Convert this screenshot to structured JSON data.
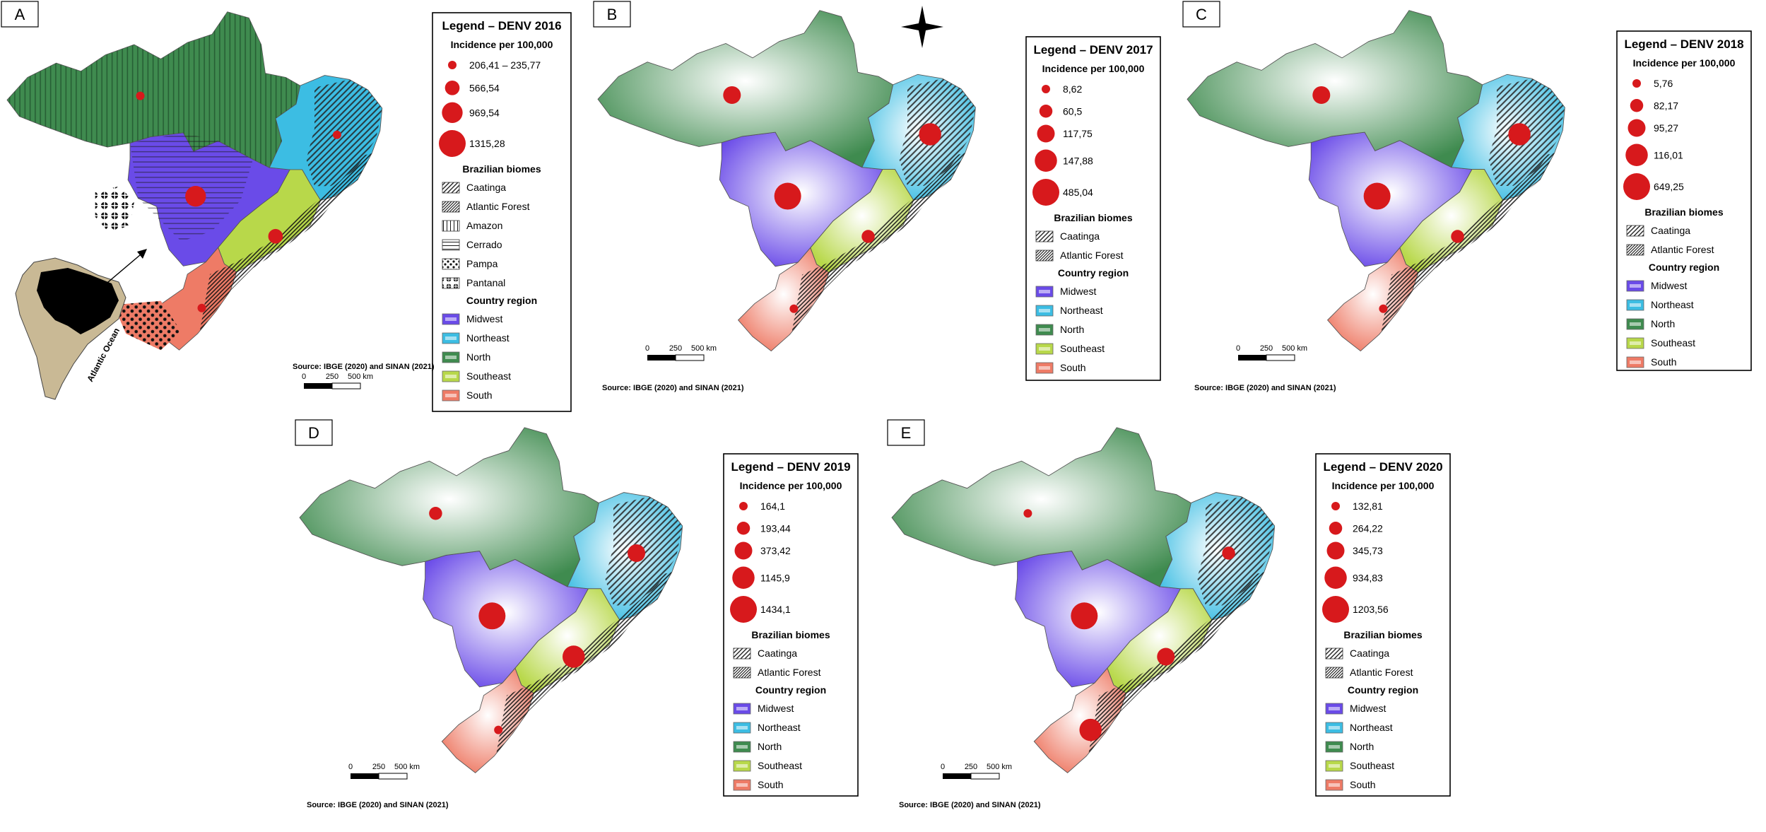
{
  "source_note": "Source: IBGE (2020) and SINAN (2021)",
  "scale": {
    "ticks": [
      "0",
      "250",
      "500 km"
    ]
  },
  "inset": {
    "ocean_label": "Atlantic Ocean"
  },
  "section_titles": {
    "incidence": "Incidence per 100,000",
    "biomes": "Brazilian biomes",
    "regions": "Country region"
  },
  "region_colors": {
    "Midwest": "#6a4be8",
    "Northeast": "#3cbde3",
    "North": "#3f8b4f",
    "Southeast": "#b8d84a",
    "South": "#ee7b66"
  },
  "point_color": "#d7191c",
  "regions": [
    "Midwest",
    "Northeast",
    "North",
    "Southeast",
    "South"
  ],
  "panels": [
    {
      "letter": "A",
      "legend_title": "Legend – DENV 2016",
      "incidence_classes": [
        "206,41 – 235,77",
        "566,54",
        "969,54",
        "1315,28"
      ],
      "biomes": [
        "Caatinga",
        "Atlantic Forest",
        "Amazon",
        "Cerrado",
        "Pampa",
        "Pantanal"
      ],
      "region_incidence_class": {
        "North": 0,
        "Northeast": 0,
        "Midwest": 2,
        "Southeast": 1,
        "South": 0
      }
    },
    {
      "letter": "B",
      "legend_title": "Legend – DENV 2017",
      "incidence_classes": [
        "8,62",
        "60,5",
        "117,75",
        "147,88",
        "485,04"
      ],
      "biomes": [
        "Caatinga",
        "Atlantic Forest"
      ],
      "region_incidence_class": {
        "North": 2,
        "Northeast": 3,
        "Midwest": 4,
        "Southeast": 1,
        "South": 0
      }
    },
    {
      "letter": "C",
      "legend_title": "Legend – DENV 2018",
      "incidence_classes": [
        "5,76",
        "82,17",
        "95,27",
        "116,01",
        "649,25"
      ],
      "biomes": [
        "Caatinga",
        "Atlantic Forest"
      ],
      "region_incidence_class": {
        "North": 2,
        "Northeast": 3,
        "Midwest": 4,
        "Southeast": 1,
        "South": 0
      }
    },
    {
      "letter": "D",
      "legend_title": "Legend – DENV 2019",
      "incidence_classes": [
        "164,1",
        "193,44",
        "373,42",
        "1145,9",
        "1434,1"
      ],
      "biomes": [
        "Caatinga",
        "Atlantic Forest"
      ],
      "region_incidence_class": {
        "North": 1,
        "Northeast": 2,
        "Midwest": 4,
        "Southeast": 3,
        "South": 0
      }
    },
    {
      "letter": "E",
      "legend_title": "Legend – DENV 2020",
      "incidence_classes": [
        "132,81",
        "264,22",
        "345,73",
        "934,83",
        "1203,56"
      ],
      "biomes": [
        "Caatinga",
        "Atlantic Forest"
      ],
      "region_incidence_class": {
        "North": 0,
        "Northeast": 1,
        "Midwest": 4,
        "Southeast": 2,
        "South": 3
      }
    }
  ]
}
